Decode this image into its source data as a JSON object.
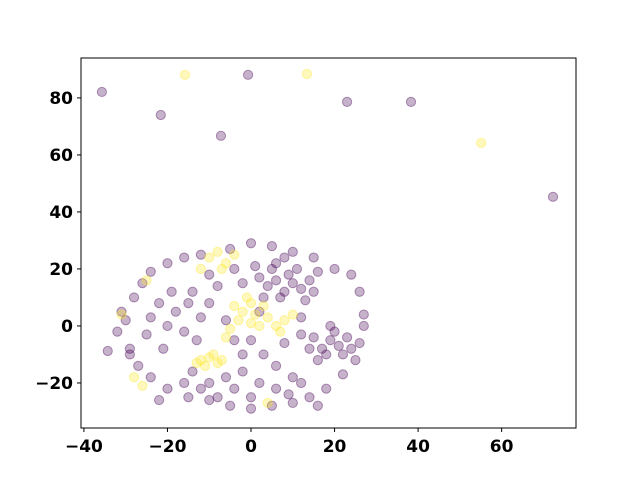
{
  "chart_data": {
    "type": "scatter",
    "title": "",
    "xlabel": "",
    "ylabel": "",
    "xlim": [
      -40.7,
      77.8
    ],
    "ylim": [
      -35.8,
      94
    ],
    "grid": false,
    "legend": "none",
    "x_ticks": [
      "−40",
      "−20",
      "0",
      "20",
      "40",
      "60"
    ],
    "x_tick_values": [
      -40,
      -20,
      0,
      20,
      40,
      60
    ],
    "y_ticks": [
      "−20",
      "0",
      "20",
      "40",
      "60",
      "80"
    ],
    "y_tick_values": [
      -20,
      0,
      20,
      40,
      60,
      80
    ],
    "marker_alpha": 0.3,
    "note_sampled": false,
    "series": [
      {
        "color": "#440154",
        "points": [
          [
            -35.7,
            82.1
          ],
          [
            -0.7,
            88.1
          ],
          [
            -21.6,
            74
          ],
          [
            -7.2,
            66.7
          ],
          [
            23,
            78.6
          ],
          [
            38.3,
            78.6
          ],
          [
            72.3,
            45.3
          ],
          [
            -34.3,
            -8.8
          ],
          [
            -30,
            2
          ],
          [
            -32,
            -2
          ],
          [
            -29,
            -8
          ],
          [
            -28,
            10
          ],
          [
            -26,
            15
          ],
          [
            -24,
            19
          ],
          [
            -20,
            22
          ],
          [
            -16,
            24
          ],
          [
            -12,
            25
          ],
          [
            -5,
            27
          ],
          [
            0,
            29
          ],
          [
            5,
            28
          ],
          [
            10,
            26
          ],
          [
            15,
            24
          ],
          [
            20,
            20
          ],
          [
            24,
            18
          ],
          [
            26,
            12
          ],
          [
            27,
            4
          ],
          [
            27,
            0
          ],
          [
            26,
            -6
          ],
          [
            25,
            -12
          ],
          [
            22,
            -17
          ],
          [
            18,
            -22
          ],
          [
            14,
            -25
          ],
          [
            10,
            -27
          ],
          [
            5,
            -28
          ],
          [
            0,
            -29
          ],
          [
            -5,
            -28
          ],
          [
            -10,
            -26
          ],
          [
            -15,
            -25
          ],
          [
            -20,
            -22
          ],
          [
            -24,
            -18
          ],
          [
            -27,
            -14
          ],
          [
            -29,
            -10
          ],
          [
            -31,
            5
          ],
          [
            -22,
            -26
          ],
          [
            16,
            -28
          ],
          [
            4,
            14
          ],
          [
            6,
            16
          ],
          [
            8,
            12
          ],
          [
            10,
            15
          ],
          [
            12,
            13
          ],
          [
            7,
            10
          ],
          [
            9,
            18
          ],
          [
            5,
            20
          ],
          [
            11,
            20
          ],
          [
            14,
            16
          ],
          [
            3,
            10
          ],
          [
            13,
            9
          ],
          [
            6,
            22
          ],
          [
            15,
            12
          ],
          [
            2,
            17
          ],
          [
            8,
            24
          ],
          [
            16,
            19
          ],
          [
            1,
            21
          ],
          [
            15,
            -4
          ],
          [
            17,
            -8
          ],
          [
            19,
            -5
          ],
          [
            21,
            -7
          ],
          [
            18,
            -10
          ],
          [
            20,
            -2
          ],
          [
            16,
            -12
          ],
          [
            22,
            -10
          ],
          [
            23,
            -4
          ],
          [
            14,
            -8
          ],
          [
            19,
            0
          ],
          [
            24,
            -8
          ],
          [
            12,
            -3
          ],
          [
            -18,
            5
          ],
          [
            -15,
            8
          ],
          [
            -12,
            3
          ],
          [
            -20,
            0
          ],
          [
            -16,
            -2
          ],
          [
            -22,
            8
          ],
          [
            -14,
            12
          ],
          [
            -10,
            8
          ],
          [
            -24,
            3
          ],
          [
            -19,
            12
          ],
          [
            -13,
            -5
          ],
          [
            -25,
            -3
          ],
          [
            -8,
            14
          ],
          [
            -21,
            -8
          ],
          [
            -10,
            -20
          ],
          [
            -6,
            -18
          ],
          [
            -12,
            -22
          ],
          [
            -4,
            -22
          ],
          [
            -8,
            -25
          ],
          [
            -14,
            -16
          ],
          [
            -2,
            -16
          ],
          [
            -16,
            -20
          ],
          [
            0,
            -5
          ],
          [
            3,
            -10
          ],
          [
            6,
            -14
          ],
          [
            -2,
            -10
          ],
          [
            8,
            -6
          ],
          [
            10,
            -18
          ],
          [
            2,
            -20
          ],
          [
            6,
            -22
          ],
          [
            12,
            -20
          ],
          [
            -4,
            -5
          ],
          [
            -6,
            2
          ],
          [
            2,
            5
          ],
          [
            12,
            3
          ],
          [
            -2,
            15
          ],
          [
            -4,
            20
          ],
          [
            -10,
            18
          ],
          [
            0,
            -25
          ],
          [
            9,
            -24
          ]
        ]
      },
      {
        "color": "#fde725",
        "points": [
          [
            -15.8,
            88.1
          ],
          [
            13.4,
            88.4
          ],
          [
            55.1,
            64.2
          ],
          [
            -2,
            5
          ],
          [
            0,
            8
          ],
          [
            1,
            4
          ],
          [
            -3,
            2
          ],
          [
            3,
            7
          ],
          [
            -1,
            10
          ],
          [
            2,
            0
          ],
          [
            -4,
            7
          ],
          [
            4,
            3
          ],
          [
            0,
            1
          ],
          [
            -12,
            -12
          ],
          [
            -10,
            -11
          ],
          [
            -8,
            -13
          ],
          [
            -11,
            -14
          ],
          [
            -9,
            -10
          ],
          [
            -13,
            -13
          ],
          [
            -7,
            -12
          ],
          [
            6,
            0
          ],
          [
            8,
            2
          ],
          [
            10,
            4
          ],
          [
            7,
            -2
          ],
          [
            -5,
            -1
          ],
          [
            -6,
            -4
          ],
          [
            -10,
            24
          ],
          [
            -8,
            26
          ],
          [
            -6,
            22
          ],
          [
            -12,
            20
          ],
          [
            -4,
            25
          ],
          [
            -7,
            20
          ],
          [
            -26,
            -21
          ],
          [
            -31,
            4
          ],
          [
            -25,
            16
          ],
          [
            4,
            -27
          ],
          [
            -28,
            -18
          ]
        ]
      }
    ]
  }
}
